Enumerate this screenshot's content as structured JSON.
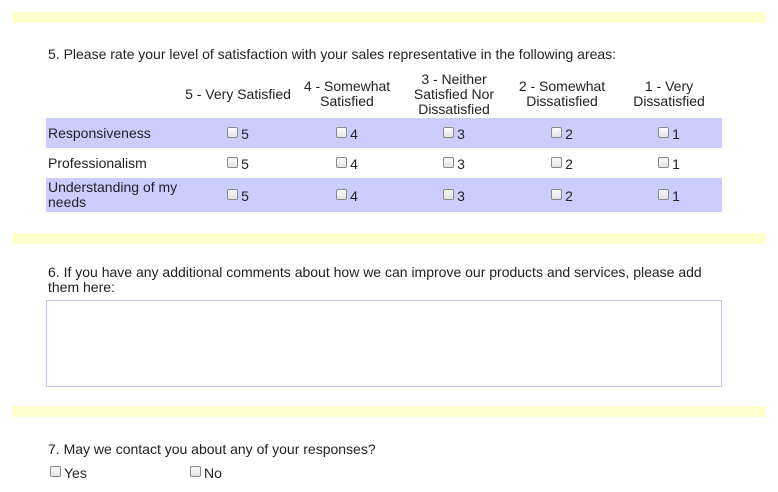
{
  "q5": {
    "question": "5. Please rate your level of satisfaction with your sales representative in the following areas:",
    "columns": [
      [
        "5 - Very Satisfied"
      ],
      [
        "4 - Somewhat",
        "Satisfied"
      ],
      [
        "3 - Neither",
        "Satisfied Nor",
        "Dissatisfied"
      ],
      [
        "2 - Somewhat",
        "Dissatisfied"
      ],
      [
        "1 - Very",
        "Dissatisfied"
      ]
    ],
    "rows": [
      {
        "label": "Responsiveness",
        "options": [
          "5",
          "4",
          "3",
          "2",
          "1"
        ]
      },
      {
        "label": "Professionalism",
        "options": [
          "5",
          "4",
          "3",
          "2",
          "1"
        ]
      },
      {
        "label": "Understanding of my needs",
        "options": [
          "5",
          "4",
          "3",
          "2",
          "1"
        ]
      }
    ]
  },
  "q6": {
    "question": "6. If you have any additional comments about how we can improve our products and services, please add them here:",
    "value": ""
  },
  "q7": {
    "question": "7. May we contact you about any of your responses?",
    "yes_label": "Yes",
    "no_label": "No"
  },
  "colors": {
    "band": "#ffffcc",
    "row_shade": "#ccccff",
    "textarea_border": "#c8c8e6"
  }
}
